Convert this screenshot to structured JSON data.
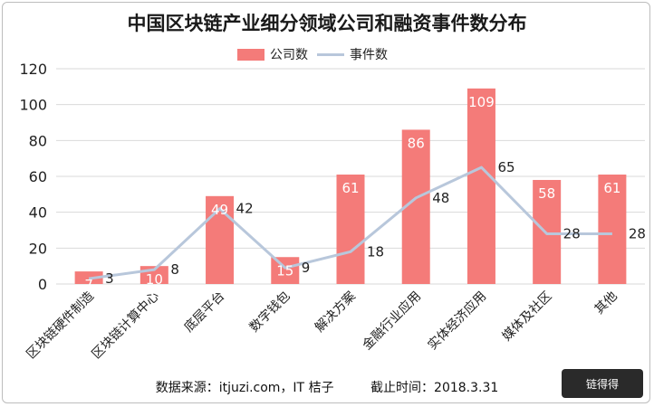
{
  "title": "中国区块链产业细分领域公司和融资事件数分布",
  "source": "数据来源：itjuzi.com，IT 桔子",
  "cutoff": "截止时间：2018.3.31",
  "logo_text": "链得得",
  "colors": {
    "bar": "#f47b79",
    "line": "#b8c7db",
    "grid": "#d9d9d9"
  },
  "chart_data": {
    "type": "bar",
    "categories": [
      "区块链硬件制造",
      "区块链计算中心",
      "底层平台",
      "数字钱包",
      "解决方案",
      "金融行业应用",
      "实体经济应用",
      "媒体及社区",
      "其他"
    ],
    "series": [
      {
        "name": "公司数",
        "type": "bar",
        "values": [
          7,
          10,
          49,
          15,
          61,
          86,
          109,
          58,
          61
        ]
      },
      {
        "name": "事件数",
        "type": "line",
        "values": [
          3,
          8,
          42,
          9,
          18,
          48,
          65,
          28,
          28
        ]
      }
    ],
    "ylim": [
      0,
      120
    ],
    "yticks": [
      0,
      20,
      40,
      60,
      80,
      100,
      120
    ],
    "grid": true,
    "legend_position": "top-center"
  }
}
